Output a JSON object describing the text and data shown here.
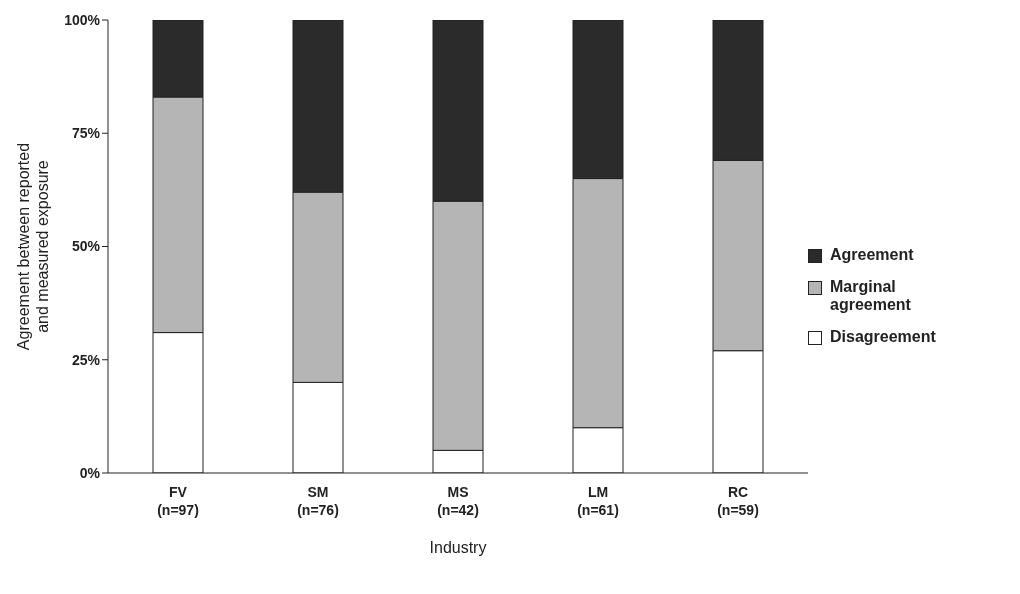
{
  "chart_data": {
    "type": "bar",
    "stacked": true,
    "xlabel": "Industry",
    "ylabel": "Agreement between reported\nand measured exposure",
    "categories": [
      "FV\n(n=97)",
      "SM\n(n=76)",
      "MS\n(n=42)",
      "LM\n(n=61)",
      "RC\n(n=59)"
    ],
    "series": [
      {
        "name": "Disagreement",
        "color": "#ffffff",
        "values": [
          31,
          20,
          5,
          10,
          27
        ]
      },
      {
        "name": "Marginal agreement",
        "color": "#b5b5b5",
        "values": [
          52,
          42,
          55,
          55,
          42
        ]
      },
      {
        "name": "Agreement",
        "color": "#2b2b2b",
        "values": [
          17,
          38,
          40,
          35,
          31
        ]
      }
    ],
    "ylim": [
      0,
      100
    ],
    "yticks": [
      {
        "value": 0,
        "label": "0%"
      },
      {
        "value": 25,
        "label": "25%"
      },
      {
        "value": 50,
        "label": "50%"
      },
      {
        "value": 75,
        "label": "75%"
      },
      {
        "value": 100,
        "label": "100%"
      }
    ],
    "grid": false,
    "legend": "right"
  }
}
